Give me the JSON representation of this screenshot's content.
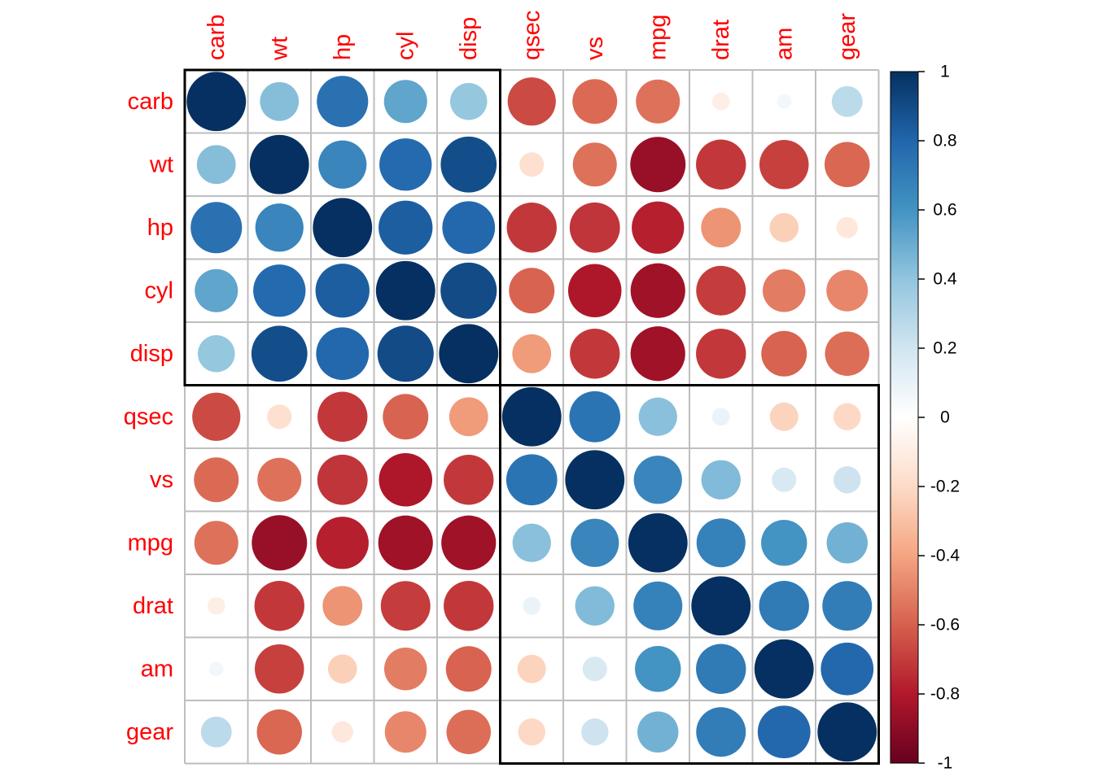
{
  "chart_data": {
    "type": "heatmap",
    "title": "",
    "rows": [
      "carb",
      "wt",
      "hp",
      "cyl",
      "disp",
      "qsec",
      "vs",
      "mpg",
      "drat",
      "am",
      "gear"
    ],
    "columns": [
      "carb",
      "wt",
      "hp",
      "cyl",
      "disp",
      "qsec",
      "vs",
      "mpg",
      "drat",
      "am",
      "gear"
    ],
    "values": [
      [
        1.0,
        0.43,
        0.75,
        0.53,
        0.39,
        -0.66,
        -0.57,
        -0.55,
        -0.09,
        0.06,
        0.27
      ],
      [
        0.43,
        1.0,
        0.66,
        0.78,
        0.89,
        -0.17,
        -0.55,
        -0.87,
        -0.71,
        -0.69,
        -0.58
      ],
      [
        0.75,
        0.66,
        1.0,
        0.83,
        0.79,
        -0.71,
        -0.72,
        -0.78,
        -0.45,
        -0.24,
        -0.13
      ],
      [
        0.53,
        0.78,
        0.83,
        1.0,
        0.9,
        -0.59,
        -0.81,
        -0.85,
        -0.7,
        -0.52,
        -0.49
      ],
      [
        0.39,
        0.89,
        0.79,
        0.9,
        1.0,
        -0.43,
        -0.71,
        -0.85,
        -0.71,
        -0.59,
        -0.56
      ],
      [
        -0.66,
        -0.17,
        -0.71,
        -0.59,
        -0.43,
        1.0,
        0.74,
        0.42,
        0.09,
        -0.23,
        -0.21
      ],
      [
        -0.57,
        -0.55,
        -0.72,
        -0.81,
        -0.71,
        0.74,
        1.0,
        0.66,
        0.44,
        0.17,
        0.21
      ],
      [
        -0.55,
        -0.87,
        -0.78,
        -0.85,
        -0.85,
        0.42,
        0.66,
        1.0,
        0.68,
        0.6,
        0.48
      ],
      [
        -0.09,
        -0.71,
        -0.45,
        -0.7,
        -0.71,
        0.09,
        0.44,
        0.68,
        1.0,
        0.71,
        0.7
      ],
      [
        0.06,
        -0.69,
        -0.24,
        -0.52,
        -0.59,
        -0.23,
        0.17,
        0.6,
        0.71,
        1.0,
        0.79
      ],
      [
        0.27,
        -0.58,
        -0.13,
        -0.49,
        -0.56,
        -0.21,
        0.21,
        0.48,
        0.7,
        0.79,
        1.0
      ]
    ],
    "clusters": [
      {
        "rows": [
          "carb",
          "disp"
        ],
        "columns": [
          "carb",
          "disp"
        ]
      },
      {
        "rows": [
          "qsec",
          "gear"
        ],
        "columns": [
          "qsec",
          "gear"
        ]
      }
    ],
    "colorbar": {
      "range": [
        -1,
        1
      ],
      "ticks": [
        "1",
        "0.8",
        "0.6",
        "0.4",
        "0.2",
        "0",
        "-0.2",
        "-0.4",
        "-0.6",
        "-0.8",
        "-1"
      ],
      "palette": [
        "#67001F",
        "#B2182B",
        "#D6604D",
        "#F4A582",
        "#FDDBC7",
        "#FFFFFF",
        "#D1E5F0",
        "#92C5DE",
        "#4393C3",
        "#2166AC",
        "#053061"
      ]
    },
    "label_color": "#FF0000",
    "grid": true
  }
}
